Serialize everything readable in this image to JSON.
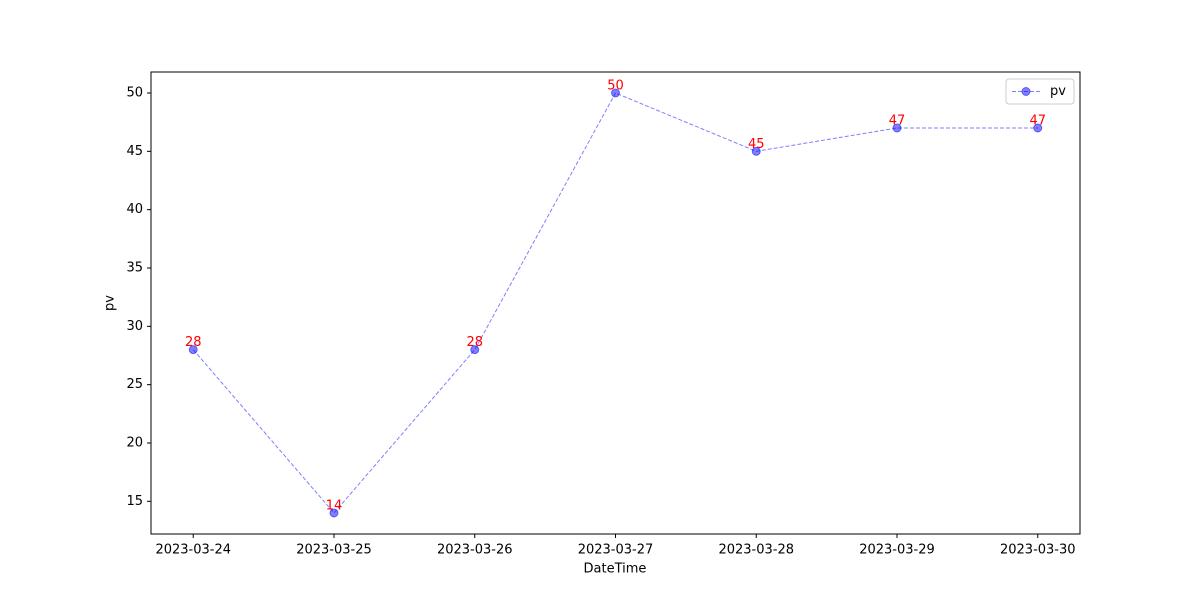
{
  "chart_data": {
    "type": "line",
    "categories": [
      "2023-03-24",
      "2023-03-25",
      "2023-03-26",
      "2023-03-27",
      "2023-03-28",
      "2023-03-29",
      "2023-03-30"
    ],
    "series": [
      {
        "name": "pv",
        "color": "#0000ff",
        "values": [
          28,
          14,
          28,
          50,
          45,
          47,
          47
        ]
      }
    ],
    "value_label_color": "#ff0000",
    "xlabel": "DateTime",
    "ylabel": "pv",
    "ylim": [
      12.2,
      51.8
    ],
    "yticks": [
      15,
      20,
      25,
      30,
      35,
      40,
      45,
      50
    ],
    "legend": "upper right"
  }
}
